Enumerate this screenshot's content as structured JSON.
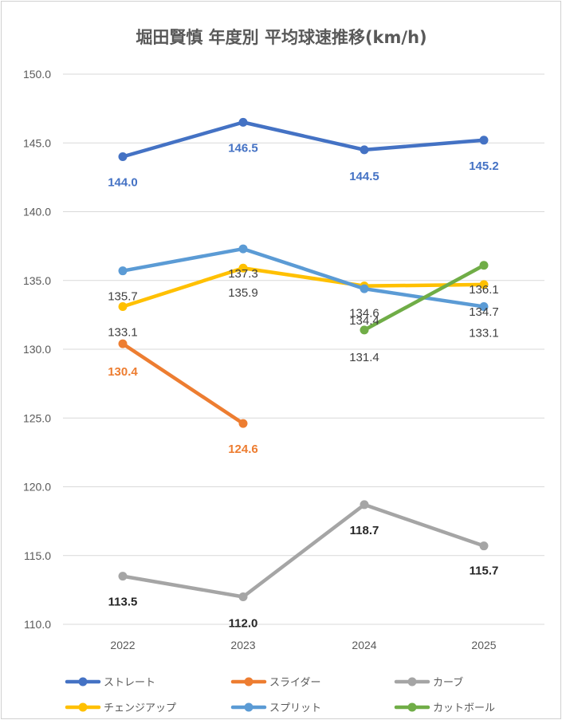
{
  "chart_data": {
    "type": "line",
    "title": "堀田賢慎 年度別 平均球速推移(km/h)",
    "categories": [
      "2022",
      "2023",
      "2024",
      "2025"
    ],
    "ylim": [
      110,
      150
    ],
    "yticks": [
      "110.0",
      "115.0",
      "120.0",
      "125.0",
      "130.0",
      "135.0",
      "140.0",
      "145.0",
      "150.0"
    ],
    "grid": true,
    "legend_position": "bottom",
    "series": [
      {
        "name": "ストレート",
        "color": "#4472C4",
        "values": [
          144.0,
          146.5,
          144.5,
          145.2
        ],
        "labels": [
          "144.0",
          "146.5",
          "144.5",
          "145.2"
        ],
        "label_color": "#4472C4",
        "label_bold": true
      },
      {
        "name": "スライダー",
        "color": "#ED7D31",
        "values": [
          130.4,
          124.6,
          null,
          null
        ],
        "labels": [
          "130.4",
          "124.6",
          null,
          null
        ],
        "label_color": "#ED7D31",
        "label_bold": true
      },
      {
        "name": "カーブ",
        "color": "#A5A5A5",
        "values": [
          113.5,
          112.0,
          118.7,
          115.7
        ],
        "labels": [
          "113.5",
          "112.0",
          "118.7",
          "115.7"
        ],
        "label_color": "#262626",
        "label_bold": true
      },
      {
        "name": "チェンジアップ",
        "color": "#FFC000",
        "values": [
          133.1,
          135.9,
          134.6,
          134.7
        ],
        "labels": [
          "133.1",
          "135.9",
          "134.6",
          "134.7"
        ],
        "label_color": "#404040",
        "label_bold": false
      },
      {
        "name": "スプリット",
        "color": "#5B9BD5",
        "values": [
          135.7,
          137.3,
          134.4,
          133.1
        ],
        "labels": [
          "135.7",
          "137.3",
          "134.4",
          "133.1"
        ],
        "label_color": "#404040",
        "label_bold": false
      },
      {
        "name": "カットボール",
        "color": "#70AD47",
        "values": [
          null,
          null,
          131.4,
          136.1
        ],
        "labels": [
          null,
          null,
          "131.4",
          "136.1"
        ],
        "label_color": "#404040",
        "label_bold": false
      }
    ]
  }
}
